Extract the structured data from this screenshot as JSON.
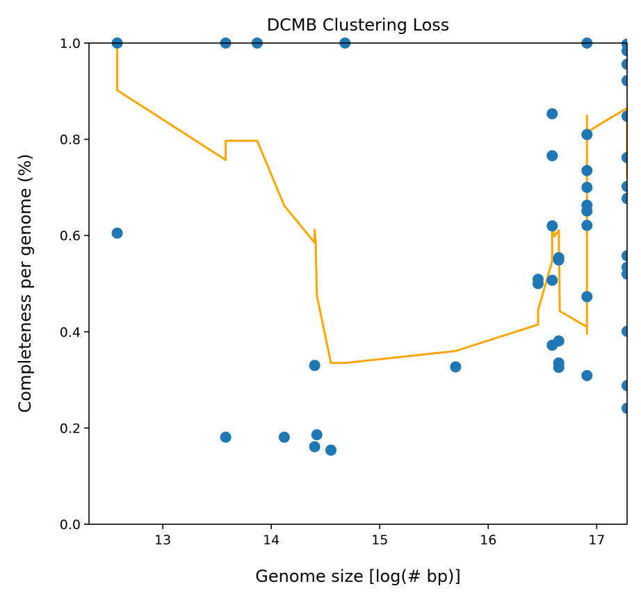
{
  "chart_data": {
    "type": "scatter",
    "title": "DCMB Clustering Loss",
    "xlabel": "Genome size [log(# bp)]",
    "ylabel": "Completeness per genome (%)",
    "xlim": [
      12.32,
      17.28
    ],
    "ylim": [
      0.0,
      1.0
    ],
    "xticks": [
      "13",
      "14",
      "15",
      "16",
      "17"
    ],
    "xtick_values": [
      13,
      14,
      15,
      16,
      17
    ],
    "yticks": [
      "0.0",
      "0.2",
      "0.4",
      "0.6",
      "0.8",
      "1.0"
    ],
    "ytick_values": [
      0.0,
      0.2,
      0.4,
      0.6,
      0.8,
      1.0
    ],
    "grid": false,
    "legend": false,
    "series": [
      {
        "kind": "scatter",
        "color": "#1f77b4",
        "points": [
          [
            12.58,
            1.0
          ],
          [
            12.58,
            0.605
          ],
          [
            13.58,
            1.0
          ],
          [
            13.58,
            0.181
          ],
          [
            13.87,
            1.0
          ],
          [
            14.12,
            0.181
          ],
          [
            14.4,
            0.33
          ],
          [
            14.4,
            0.161
          ],
          [
            14.42,
            0.186
          ],
          [
            14.55,
            0.154
          ],
          [
            14.68,
            1.0
          ],
          [
            15.7,
            0.327
          ],
          [
            16.46,
            0.509
          ],
          [
            16.46,
            0.5
          ],
          [
            16.59,
            0.853
          ],
          [
            16.59,
            0.766
          ],
          [
            16.59,
            0.62
          ],
          [
            16.59,
            0.507
          ],
          [
            16.59,
            0.372
          ],
          [
            16.65,
            0.554
          ],
          [
            16.65,
            0.549
          ],
          [
            16.65,
            0.381
          ],
          [
            16.65,
            0.335
          ],
          [
            16.65,
            0.326
          ],
          [
            16.91,
            1.0
          ],
          [
            16.91,
            0.81
          ],
          [
            16.91,
            0.735
          ],
          [
            16.91,
            0.7
          ],
          [
            16.91,
            0.663
          ],
          [
            16.91,
            0.651
          ],
          [
            16.91,
            0.621
          ],
          [
            16.91,
            0.473
          ],
          [
            16.91,
            0.309
          ],
          [
            17.28,
            0.998
          ],
          [
            17.28,
            0.984
          ],
          [
            17.28,
            0.956
          ],
          [
            17.28,
            0.922
          ],
          [
            17.28,
            0.848
          ],
          [
            17.28,
            0.762
          ],
          [
            17.28,
            0.702
          ],
          [
            17.28,
            0.677
          ],
          [
            17.28,
            0.558
          ],
          [
            17.28,
            0.534
          ],
          [
            17.28,
            0.52
          ],
          [
            17.28,
            0.401
          ],
          [
            17.28,
            0.288
          ],
          [
            17.28,
            0.241
          ]
        ]
      },
      {
        "kind": "line",
        "color": "#ffa500",
        "points": [
          [
            12.58,
            1.0
          ],
          [
            12.58,
            0.902
          ],
          [
            13.58,
            0.757
          ],
          [
            13.58,
            0.797
          ],
          [
            13.87,
            0.797
          ],
          [
            14.12,
            0.662
          ],
          [
            14.4,
            0.585
          ],
          [
            14.4,
            0.612
          ],
          [
            14.41,
            0.587
          ],
          [
            14.42,
            0.476
          ],
          [
            14.55,
            0.335
          ],
          [
            14.68,
            0.335
          ],
          [
            15.7,
            0.36
          ],
          [
            16.46,
            0.415
          ],
          [
            16.46,
            0.445
          ],
          [
            16.59,
            0.547
          ],
          [
            16.59,
            0.622
          ],
          [
            16.61,
            0.598
          ],
          [
            16.65,
            0.611
          ],
          [
            16.66,
            0.443
          ],
          [
            16.91,
            0.41
          ],
          [
            16.91,
            0.396
          ],
          [
            16.91,
            0.849
          ],
          [
            16.91,
            0.815
          ],
          [
            17.28,
            0.865
          ],
          [
            17.28,
            0.72
          ]
        ]
      }
    ]
  }
}
